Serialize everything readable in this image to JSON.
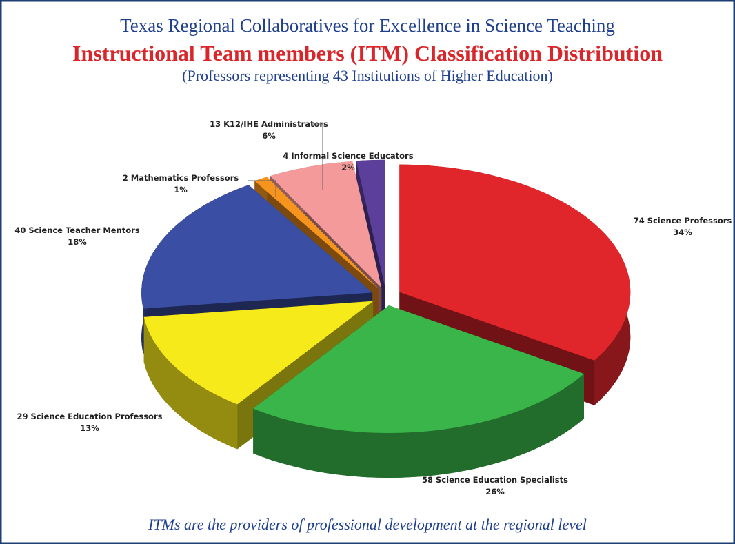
{
  "chart_data": {
    "type": "pie",
    "subtitle": "Texas Regional Collaboratives for Excellence in Science Teaching",
    "title": "Instructional Team members (ITM) Classification Distribution",
    "note": "(Professors representing 43 Institutions of Higher Education)",
    "caption": "ITMs are the providers of professional development at the regional level",
    "categories": [
      "74 Science Professors",
      "58 Science Education Specialists",
      "29 Science Education Professors",
      "40 Science Teacher Mentors",
      "2 Mathematics Professors",
      "13 K12/IHE Administrators",
      "4 Informal Science Educators"
    ],
    "values": [
      34,
      26,
      13,
      18,
      1,
      6,
      2
    ],
    "value_labels": [
      "34%",
      "26%",
      "13%",
      "18%",
      "1%",
      "6%",
      "2%"
    ],
    "colors": [
      "#e1262b",
      "#39b54a",
      "#f6ea1b",
      "#3a4ea3",
      "#f7941d",
      "#f49a9a",
      "#5b3f9b"
    ]
  }
}
